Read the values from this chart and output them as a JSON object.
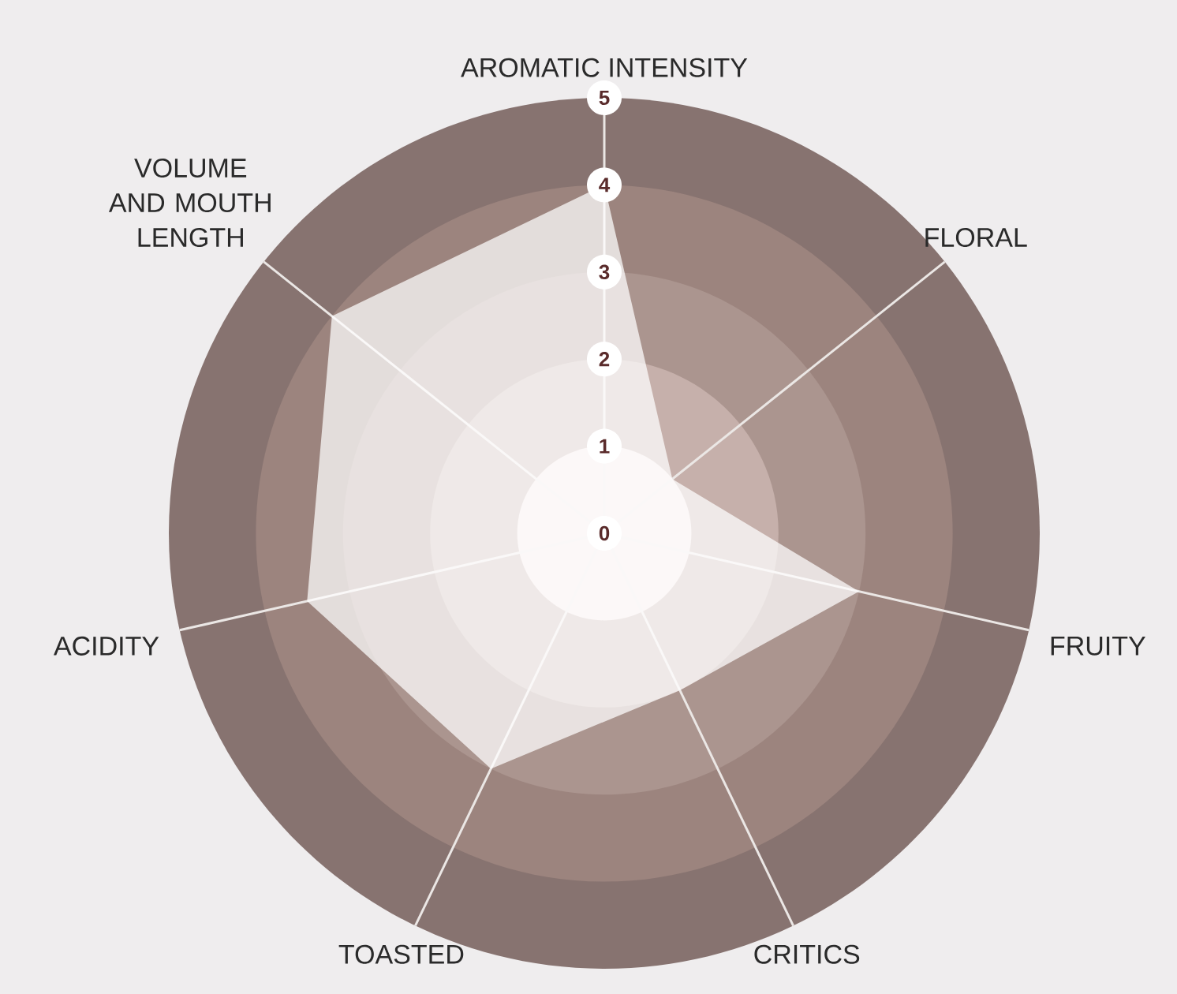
{
  "chart_data": {
    "type": "radar",
    "categories": [
      "AROMATIC INTENSITY",
      "FLORAL",
      "FRUITY",
      "CRITICS",
      "TOASTED",
      "ACIDITY",
      "VOLUME AND MOUTH LENGTH"
    ],
    "series": [
      {
        "color": "#ffffff",
        "values": [
          4,
          1,
          3,
          2,
          3,
          3.5,
          4
        ]
      }
    ],
    "ylim": [
      0,
      5
    ],
    "yticks": [
      0,
      1,
      2,
      3,
      4,
      5
    ],
    "grid": true
  }
}
